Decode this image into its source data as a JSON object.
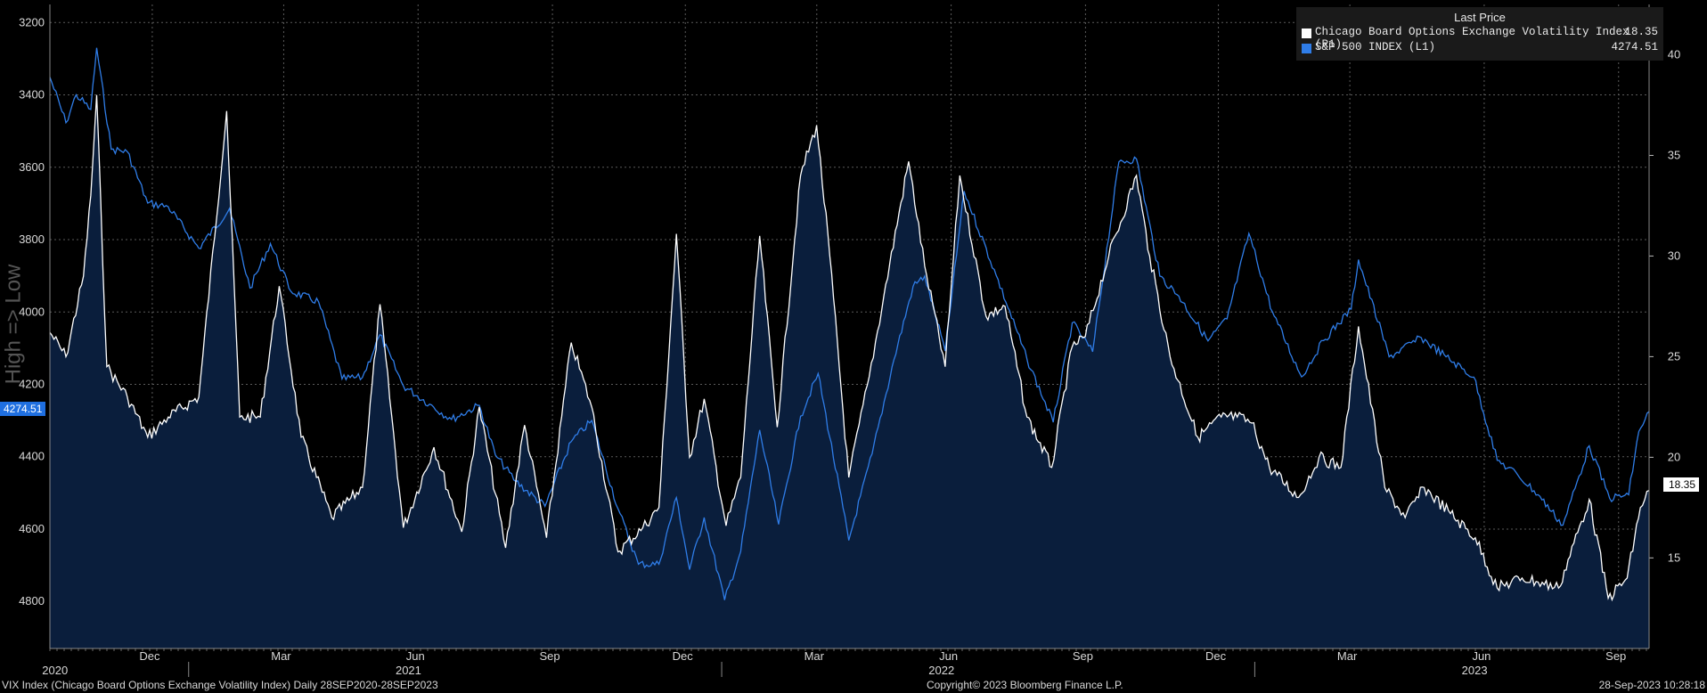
{
  "chart_data": {
    "type": "line",
    "title": "",
    "left_axis": {
      "ticks": [
        3200,
        3400,
        3600,
        3800,
        4000,
        4200,
        4400,
        4600,
        4800
      ],
      "range": [
        3150,
        4930
      ],
      "inverted": true
    },
    "right_axis": {
      "ticks": [
        15,
        20,
        25,
        30,
        35,
        40
      ],
      "range": [
        10.5,
        42.5
      ]
    },
    "y_axis_label": "High => Low",
    "x_months": [
      "Dec",
      "Mar",
      "Jun",
      "Sep",
      "Dec",
      "Mar",
      "Jun",
      "Sep",
      "Dec",
      "Mar",
      "Jun",
      "Sep"
    ],
    "x_years": [
      "2020",
      "2021",
      "2022",
      "2023"
    ],
    "x_range": [
      "2020-09-28",
      "2023-09-28"
    ],
    "grid": true,
    "legend_placement": "top-right",
    "legend_header": "Last Price",
    "series": [
      {
        "name": "Chicago Board Options Exchange Volatility Index  (R1)",
        "axis": "right",
        "color": "#ffffff",
        "last": "18.35",
        "points": [
          [
            "2020-09-28",
            26.2
          ],
          [
            "2020-10-09",
            25.0
          ],
          [
            "2020-10-21",
            29.0
          ],
          [
            "2020-10-26",
            33.0
          ],
          [
            "2020-10-30",
            38.0
          ],
          [
            "2020-11-06",
            24.5
          ],
          [
            "2020-11-20",
            23.0
          ],
          [
            "2020-12-04",
            21.0
          ],
          [
            "2020-12-18",
            22.0
          ],
          [
            "2021-01-08",
            23.0
          ],
          [
            "2021-01-27",
            37.2
          ],
          [
            "2021-02-05",
            22.0
          ],
          [
            "2021-02-19",
            22.0
          ],
          [
            "2021-03-04",
            28.5
          ],
          [
            "2021-03-19",
            21.0
          ],
          [
            "2021-04-09",
            17.0
          ],
          [
            "2021-04-30",
            18.5
          ],
          [
            "2021-05-12",
            27.6
          ],
          [
            "2021-05-28",
            16.5
          ],
          [
            "2021-06-18",
            20.5
          ],
          [
            "2021-07-07",
            16.3
          ],
          [
            "2021-07-19",
            22.5
          ],
          [
            "2021-08-06",
            15.5
          ],
          [
            "2021-08-19",
            21.6
          ],
          [
            "2021-09-03",
            16.0
          ],
          [
            "2021-09-20",
            25.7
          ],
          [
            "2021-10-04",
            22.5
          ],
          [
            "2021-10-22",
            15.3
          ],
          [
            "2021-11-08",
            16.5
          ],
          [
            "2021-11-19",
            17.5
          ],
          [
            "2021-12-01",
            31.1
          ],
          [
            "2021-12-10",
            20.0
          ],
          [
            "2021-12-20",
            22.9
          ],
          [
            "2022-01-04",
            16.6
          ],
          [
            "2022-01-14",
            19.0
          ],
          [
            "2022-01-27",
            31.0
          ],
          [
            "2022-02-08",
            21.5
          ],
          [
            "2022-02-24",
            34.0
          ],
          [
            "2022-03-07",
            36.5
          ],
          [
            "2022-03-16",
            30.0
          ],
          [
            "2022-03-29",
            19.0
          ],
          [
            "2022-04-12",
            24.0
          ],
          [
            "2022-04-22",
            28.0
          ],
          [
            "2022-05-09",
            34.7
          ],
          [
            "2022-05-20",
            29.5
          ],
          [
            "2022-06-03",
            24.5
          ],
          [
            "2022-06-13",
            34.0
          ],
          [
            "2022-07-01",
            27.0
          ],
          [
            "2022-07-14",
            27.5
          ],
          [
            "2022-07-29",
            22.0
          ],
          [
            "2022-08-15",
            19.5
          ],
          [
            "2022-08-29",
            25.5
          ],
          [
            "2022-09-07",
            26.0
          ],
          [
            "2022-09-23",
            30.0
          ],
          [
            "2022-10-12",
            34.0
          ],
          [
            "2022-10-21",
            30.0
          ],
          [
            "2022-11-04",
            25.0
          ],
          [
            "2022-11-23",
            21.0
          ],
          [
            "2022-12-09",
            22.0
          ],
          [
            "2022-12-20",
            22.0
          ],
          [
            "2022-12-30",
            21.7
          ],
          [
            "2023-01-11",
            19.5
          ],
          [
            "2023-01-31",
            18.0
          ],
          [
            "2023-02-14",
            20.0
          ],
          [
            "2023-03-01",
            19.5
          ],
          [
            "2023-03-13",
            26.5
          ],
          [
            "2023-03-31",
            18.5
          ],
          [
            "2023-04-14",
            17.0
          ],
          [
            "2023-04-27",
            18.5
          ],
          [
            "2023-05-15",
            17.2
          ],
          [
            "2023-06-01",
            16.0
          ],
          [
            "2023-06-16",
            13.5
          ],
          [
            "2023-07-03",
            14.0
          ],
          [
            "2023-07-14",
            13.8
          ],
          [
            "2023-07-28",
            13.5
          ],
          [
            "2023-08-18",
            17.9
          ],
          [
            "2023-08-31",
            13.0
          ],
          [
            "2023-09-13",
            14.0
          ],
          [
            "2023-09-22",
            17.5
          ],
          [
            "2023-09-28",
            18.35
          ]
        ]
      },
      {
        "name": "S&P 500 INDEX  (L1)",
        "axis": "left",
        "color": "#2f7de8",
        "last": "4274.51",
        "points": [
          [
            "2020-09-28",
            3351
          ],
          [
            "2020-10-09",
            3477
          ],
          [
            "2020-10-16",
            3400
          ],
          [
            "2020-10-26",
            3440
          ],
          [
            "2020-10-30",
            3270
          ],
          [
            "2020-11-09",
            3550
          ],
          [
            "2020-11-20",
            3557
          ],
          [
            "2020-12-04",
            3699
          ],
          [
            "2020-12-18",
            3709
          ],
          [
            "2021-01-08",
            3824
          ],
          [
            "2021-01-29",
            3714
          ],
          [
            "2021-02-12",
            3934
          ],
          [
            "2021-02-26",
            3811
          ],
          [
            "2021-03-12",
            3943
          ],
          [
            "2021-03-31",
            3972
          ],
          [
            "2021-04-16",
            4185
          ],
          [
            "2021-04-30",
            4181
          ],
          [
            "2021-05-12",
            4063
          ],
          [
            "2021-05-28",
            4204
          ],
          [
            "2021-06-15",
            4255
          ],
          [
            "2021-06-30",
            4297
          ],
          [
            "2021-07-19",
            4258
          ],
          [
            "2021-07-30",
            4395
          ],
          [
            "2021-08-13",
            4468
          ],
          [
            "2021-09-02",
            4537
          ],
          [
            "2021-09-20",
            4358
          ],
          [
            "2021-10-04",
            4300
          ],
          [
            "2021-10-22",
            4544
          ],
          [
            "2021-11-05",
            4697
          ],
          [
            "2021-11-19",
            4697
          ],
          [
            "2021-12-01",
            4513
          ],
          [
            "2021-12-10",
            4712
          ],
          [
            "2021-12-20",
            4568
          ],
          [
            "2022-01-03",
            4796
          ],
          [
            "2022-01-14",
            4662
          ],
          [
            "2022-01-27",
            4326
          ],
          [
            "2022-02-09",
            4587
          ],
          [
            "2022-02-24",
            4288
          ],
          [
            "2022-03-08",
            4170
          ],
          [
            "2022-03-29",
            4631
          ],
          [
            "2022-04-14",
            4392
          ],
          [
            "2022-04-29",
            4131
          ],
          [
            "2022-05-12",
            3930
          ],
          [
            "2022-05-20",
            3901
          ],
          [
            "2022-06-03",
            4108
          ],
          [
            "2022-06-16",
            3666
          ],
          [
            "2022-07-08",
            3899
          ],
          [
            "2022-07-29",
            4130
          ],
          [
            "2022-08-16",
            4305
          ],
          [
            "2022-08-29",
            4030
          ],
          [
            "2022-09-12",
            4110
          ],
          [
            "2022-09-30",
            3585
          ],
          [
            "2022-10-12",
            3577
          ],
          [
            "2022-10-28",
            3901
          ],
          [
            "2022-11-10",
            3956
          ],
          [
            "2022-11-30",
            4080
          ],
          [
            "2022-12-13",
            4019
          ],
          [
            "2022-12-28",
            3783
          ],
          [
            "2023-01-13",
            3999
          ],
          [
            "2023-02-02",
            4179
          ],
          [
            "2023-02-17",
            4079
          ],
          [
            "2023-03-08",
            3992
          ],
          [
            "2023-03-13",
            3855
          ],
          [
            "2023-04-03",
            4124
          ],
          [
            "2023-04-25",
            4071
          ],
          [
            "2023-05-12",
            4124
          ],
          [
            "2023-05-31",
            4180
          ],
          [
            "2023-06-16",
            4410
          ],
          [
            "2023-06-30",
            4450
          ],
          [
            "2023-07-14",
            4505
          ],
          [
            "2023-07-31",
            4589
          ],
          [
            "2023-08-18",
            4370
          ],
          [
            "2023-09-01",
            4515
          ],
          [
            "2023-09-14",
            4505
          ],
          [
            "2023-09-21",
            4330
          ],
          [
            "2023-09-28",
            4275
          ]
        ]
      }
    ]
  },
  "price_tags": {
    "left": "4274.51",
    "right": "18.35"
  },
  "footer": {
    "left": "VIX Index (Chicago Board Options Exchange Volatility Index)  Daily 28SEP2020-28SEP2023",
    "center": "Copyright© 2023 Bloomberg Finance L.P.",
    "right": "28-Sep-2023 10:28:18"
  }
}
